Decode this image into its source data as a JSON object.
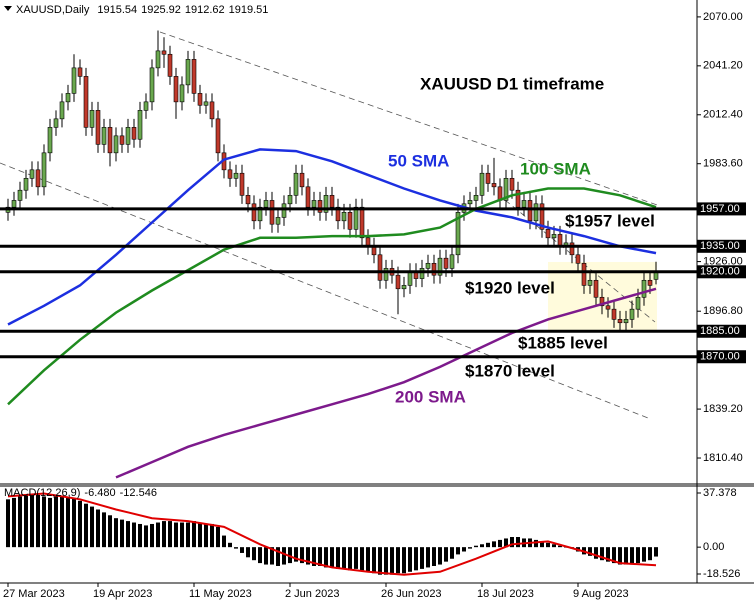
{
  "chart_data": {
    "type": "candlestick",
    "title": "XAUUSD,Daily",
    "categories": [
      "27 Mar 2023",
      null,
      null,
      null,
      null,
      null,
      null,
      null,
      null,
      null,
      null,
      null,
      null,
      null,
      null,
      "19 Apr 2023",
      null,
      null,
      null,
      null,
      null,
      null,
      null,
      null,
      null,
      null,
      null,
      null,
      null,
      null,
      null,
      "11 May 2023",
      null,
      null,
      null,
      null,
      null,
      null,
      null,
      null,
      null,
      null,
      null,
      null,
      null,
      null,
      null,
      "2 Jun 2023",
      null,
      null,
      null,
      null,
      null,
      null,
      null,
      null,
      null,
      null,
      null,
      null,
      null,
      null,
      null,
      "26 Jun 2023",
      null,
      null,
      null,
      null,
      null,
      null,
      null,
      null,
      null,
      null,
      null,
      null,
      null,
      null,
      null,
      "18 Jul 2023",
      null,
      null,
      null,
      null,
      null,
      null,
      null,
      null,
      null,
      null,
      null,
      null,
      null,
      null,
      null,
      "9 Aug 2023",
      null,
      null,
      null,
      null,
      null,
      null,
      null,
      null,
      null,
      null,
      null,
      null,
      null
    ],
    "open": [
      1955,
      1958,
      1962,
      1968,
      1975,
      1980,
      1970,
      1990,
      2005,
      2010,
      2020,
      2025,
      2040,
      2035,
      2005,
      2015,
      1995,
      2005,
      1990,
      2000,
      1995,
      2005,
      1998,
      2015,
      2020,
      2040,
      2050,
      2048,
      2035,
      2020,
      2030,
      2045,
      2025,
      2018,
      2020,
      2010,
      1990,
      1980,
      1975,
      1978,
      1965,
      1960,
      1950,
      1958,
      1962,
      1948,
      1952,
      1960,
      1965,
      1978,
      1970,
      1958,
      1962,
      1955,
      1965,
      1958,
      1950,
      1955,
      1945,
      1958,
      1940,
      1935,
      1930,
      1915,
      1922,
      1918,
      1910,
      1912,
      1920,
      1916,
      1922,
      1925,
      1918,
      1928,
      1922,
      1930,
      1955,
      1960,
      1962,
      1965,
      1978,
      1972,
      1970,
      1962,
      1975,
      1968,
      1958,
      1962,
      1950,
      1960,
      1945,
      1940,
      1942,
      1935,
      1937,
      1930,
      1925,
      1912,
      1915,
      1905,
      1900,
      1898,
      1892,
      1890,
      1892,
      1898,
      1905,
      1915,
      1915.54
    ],
    "high": [
      1963,
      1967,
      1973,
      1980,
      1985,
      1985,
      1995,
      2010,
      2015,
      2025,
      2030,
      2048,
      2045,
      2040,
      2020,
      2020,
      2010,
      2010,
      2005,
      2005,
      2010,
      2010,
      2020,
      2025,
      2045,
      2062,
      2058,
      2053,
      2040,
      2035,
      2050,
      2050,
      2030,
      2025,
      2025,
      2015,
      1995,
      1985,
      1983,
      1983,
      1970,
      1965,
      1963,
      1967,
      1967,
      1957,
      1965,
      1970,
      1983,
      1983,
      1975,
      1967,
      1967,
      1970,
      1970,
      1963,
      1960,
      1960,
      1963,
      1963,
      1945,
      1940,
      1935,
      1927,
      1927,
      1923,
      1917,
      1925,
      1925,
      1927,
      1930,
      1930,
      1933,
      1933,
      1935,
      1960,
      1965,
      1967,
      1970,
      1983,
      1983,
      1987,
      1975,
      1980,
      1980,
      1973,
      1967,
      1967,
      1965,
      1965,
      1950,
      1947,
      1947,
      1942,
      1942,
      1935,
      1930,
      1920,
      1920,
      1910,
      1905,
      1903,
      1897,
      1897,
      1903,
      1910,
      1920,
      1920,
      1925.92
    ],
    "low": [
      1950,
      1953,
      1957,
      1963,
      1970,
      1965,
      1965,
      1985,
      2000,
      2005,
      2015,
      2020,
      2030,
      2000,
      2000,
      1990,
      1990,
      1982,
      1985,
      1990,
      1990,
      1993,
      1993,
      2010,
      2015,
      2035,
      2040,
      2030,
      2010,
      2015,
      2025,
      2020,
      2013,
      2013,
      2005,
      1985,
      1975,
      1970,
      1970,
      1960,
      1955,
      1945,
      1945,
      1953,
      1943,
      1943,
      1947,
      1955,
      1960,
      1965,
      1953,
      1953,
      1950,
      1950,
      1953,
      1945,
      1945,
      1940,
      1940,
      1935,
      1930,
      1925,
      1910,
      1910,
      1913,
      1895,
      1905,
      1907,
      1911,
      1911,
      1917,
      1913,
      1913,
      1917,
      1917,
      1925,
      1950,
      1955,
      1957,
      1960,
      1967,
      1965,
      1957,
      1957,
      1963,
      1953,
      1953,
      1945,
      1945,
      1940,
      1935,
      1935,
      1930,
      1930,
      1925,
      1920,
      1907,
      1907,
      1900,
      1895,
      1893,
      1887,
      1885,
      1885,
      1887,
      1893,
      1900,
      1907,
      1912.62
    ],
    "close": [
      1958,
      1962,
      1968,
      1975,
      1980,
      1970,
      1990,
      2005,
      2010,
      2020,
      2025,
      2040,
      2035,
      2005,
      2015,
      1995,
      2005,
      1990,
      2000,
      1995,
      2005,
      1998,
      2015,
      2020,
      2040,
      2050,
      2048,
      2035,
      2020,
      2030,
      2045,
      2025,
      2018,
      2020,
      2010,
      1990,
      1980,
      1975,
      1978,
      1965,
      1960,
      1950,
      1958,
      1962,
      1948,
      1952,
      1960,
      1965,
      1978,
      1970,
      1958,
      1962,
      1955,
      1965,
      1958,
      1950,
      1955,
      1945,
      1958,
      1940,
      1935,
      1930,
      1915,
      1922,
      1918,
      1910,
      1912,
      1920,
      1916,
      1922,
      1925,
      1918,
      1928,
      1922,
      1930,
      1955,
      1960,
      1962,
      1965,
      1978,
      1972,
      1970,
      1962,
      1975,
      1968,
      1958,
      1962,
      1950,
      1960,
      1945,
      1940,
      1942,
      1935,
      1937,
      1930,
      1925,
      1912,
      1915,
      1905,
      1900,
      1898,
      1892,
      1890,
      1892,
      1898,
      1905,
      1915,
      1912,
      1919.51
    ],
    "up_color": "#6aa84f",
    "down_color": "#c0392b",
    "ylim": [
      1795.7,
      2077
    ],
    "yticks": [
      {
        "value": 2070,
        "label": "2070.00"
      },
      {
        "value": 2041.2,
        "label": "2041.20"
      },
      {
        "value": 2012.4,
        "label": "2012.40"
      },
      {
        "value": 1983.6,
        "label": "1983.60"
      },
      {
        "value": 1926,
        "label": "1926.00"
      },
      {
        "value": 1896.8,
        "label": "1896.80"
      },
      {
        "value": 1839.2,
        "label": "1839.20"
      },
      {
        "value": 1810.4,
        "label": "1810.40"
      }
    ],
    "levels": [
      {
        "value": 1957,
        "label": "1957.00",
        "text": "$1957 level"
      },
      {
        "value": 1935,
        "label": "1935.00"
      },
      {
        "value": 1920,
        "label": "1920.00",
        "text": "$1920 level"
      },
      {
        "value": 1885,
        "label": "1885.00",
        "text": "$1885 level"
      },
      {
        "value": 1870,
        "label": "1870.00",
        "text": "$1870 level"
      }
    ],
    "annotation": "XAUUSD D1 timeframe",
    "overlays": {
      "x": [
        0,
        6,
        12,
        18,
        24,
        30,
        36,
        42,
        48,
        54,
        60,
        66,
        72,
        78,
        84,
        90,
        96,
        102,
        108
      ],
      "series": [
        {
          "name": "50 SMA",
          "color": "#1c2fe0",
          "values": [
            1889,
            1900,
            1912,
            1930,
            1949,
            1968,
            1986,
            1992,
            1991,
            1985,
            1977,
            1969,
            1962,
            1956,
            1952,
            1946,
            1941,
            1935,
            1931
          ]
        },
        {
          "name": "100 SMA",
          "color": "#1f8b1f",
          "values": [
            1842,
            1862,
            1880,
            1896,
            1909,
            1921,
            1933,
            1940,
            1940,
            1941,
            1941,
            1942,
            1946,
            1957,
            1965,
            1969,
            1969,
            1965,
            1958
          ]
        },
        {
          "name": "200 SMA",
          "color": "#7d1a8c",
          "values": [
            null,
            null,
            null,
            1799,
            1808,
            1817,
            1824,
            1830,
            1836,
            1842,
            1848,
            1855,
            1864,
            1874,
            1884,
            1892,
            1898,
            1904,
            1910
          ]
        }
      ]
    },
    "macd": {
      "title": "MACD(12,26,9)",
      "readout": [
        "-6.480",
        "-12.546"
      ],
      "histogram": [
        33,
        34,
        35,
        36,
        36,
        36,
        35,
        34,
        35,
        35,
        34,
        34,
        32,
        30,
        28,
        26,
        24,
        22,
        20,
        19,
        18,
        17,
        16,
        15,
        16,
        17,
        18,
        18,
        17,
        17,
        17,
        18,
        17,
        16,
        16,
        14,
        8,
        3,
        -1,
        -4,
        -7,
        -9,
        -11,
        -12,
        -12,
        -13,
        -12,
        -11,
        -10,
        -11,
        -12,
        -13,
        -13,
        -14,
        -14,
        -15,
        -15,
        -16,
        -15,
        -16,
        -17,
        -18,
        -19,
        -19,
        -19,
        -18,
        -18,
        -17,
        -16,
        -15,
        -14,
        -13,
        -12,
        -10,
        -8,
        -5,
        -3,
        -1,
        1,
        2,
        3,
        4,
        5,
        6,
        7,
        7,
        6,
        6,
        5,
        4,
        3,
        2,
        1,
        0,
        -1,
        -3,
        -5,
        -6,
        -8,
        -9,
        -10,
        -11,
        -12,
        -12,
        -12,
        -11,
        -10,
        -9,
        -6.48
      ],
      "histogram_color": "#000000",
      "signal": {
        "x": [
          0,
          6,
          12,
          18,
          24,
          30,
          36,
          42,
          48,
          54,
          60,
          66,
          72,
          78,
          84,
          90,
          96,
          102,
          108
        ],
        "values": [
          35,
          37,
          33,
          26,
          20,
          18,
          14,
          2,
          -8,
          -14,
          -17,
          -19,
          -17,
          -8,
          2,
          4,
          -3,
          -11,
          -12.546
        ],
        "color": "#e00000"
      },
      "ylim": [
        -24.74,
        41.52
      ],
      "yticks": [
        37.378,
        {
          "value": 0,
          "label": "0.00"
        },
        -18.526
      ]
    }
  }
}
